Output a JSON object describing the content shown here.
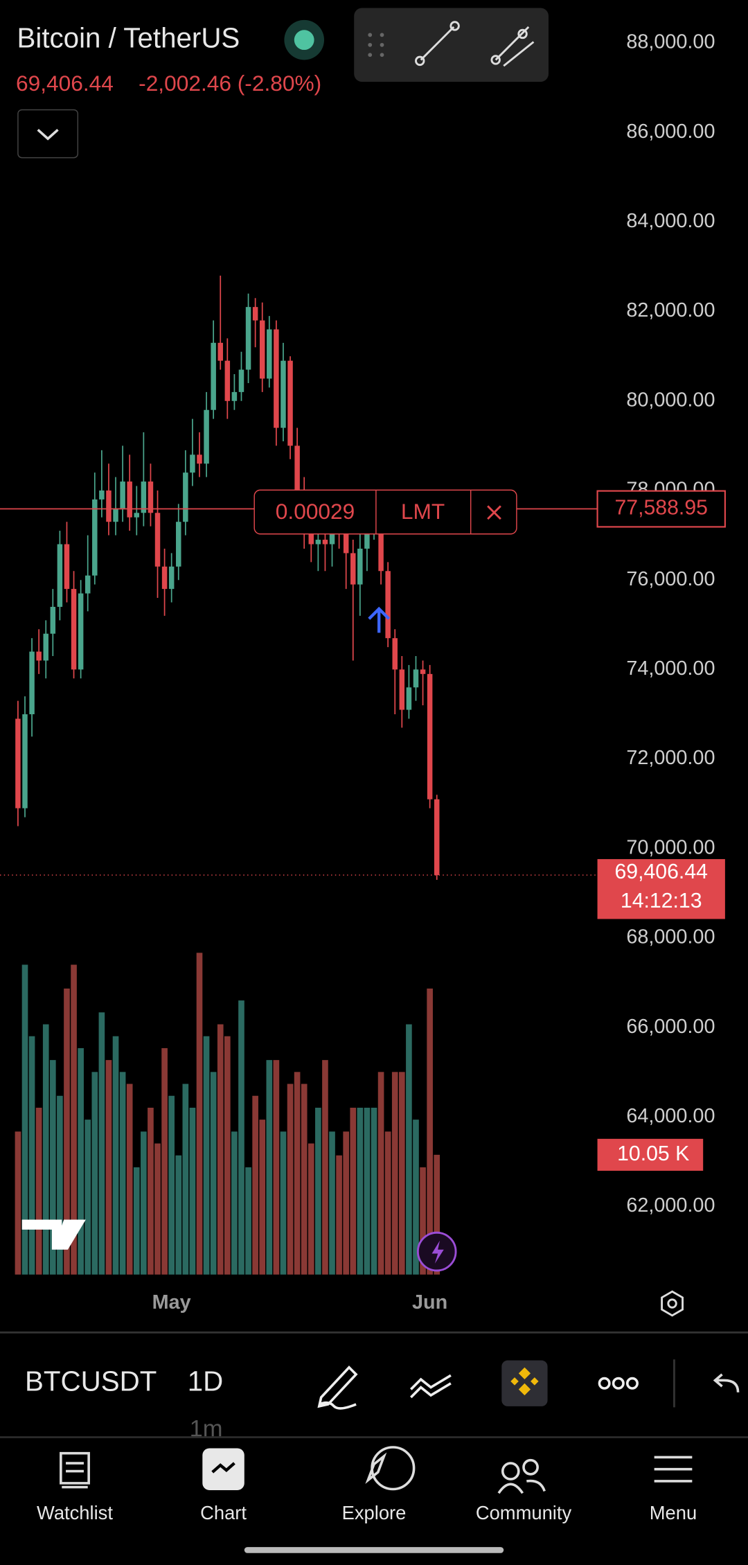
{
  "header": {
    "title": "Bitcoin / TetherUS",
    "last_price": "69,406.44",
    "change": "-2,002.46 (-2.80%)"
  },
  "order": {
    "quantity": "0.00029",
    "type": "LMT"
  },
  "toolbar": {
    "symbol": "BTCUSDT",
    "interval": "1D",
    "next_interval": "1m"
  },
  "tabs": [
    "Watchlist",
    "Chart",
    "Explore",
    "Community",
    "Menu"
  ],
  "chart_data": {
    "type": "candlestick",
    "x": [
      null,
      null,
      null,
      null,
      null,
      null,
      null,
      null,
      null,
      null,
      null,
      null,
      null,
      null,
      null,
      null,
      null,
      null,
      null,
      null,
      null,
      null,
      "May",
      null,
      null,
      null,
      null,
      null,
      null,
      null,
      null,
      null,
      null,
      null,
      null,
      null,
      null,
      null,
      null,
      null,
      null,
      null,
      null,
      null,
      null,
      null,
      null,
      null,
      null,
      null,
      null,
      null,
      null,
      null,
      null,
      null,
      null,
      null,
      null,
      "Jun",
      null
    ],
    "ohlc": [
      [
        72900,
        73300,
        70500,
        70900
      ],
      [
        70900,
        73400,
        70700,
        73000
      ],
      [
        73000,
        74700,
        72500,
        74400
      ],
      [
        74400,
        74900,
        73900,
        74200
      ],
      [
        74200,
        75100,
        73800,
        74800
      ],
      [
        74800,
        75800,
        74300,
        75400
      ],
      [
        75400,
        77100,
        75100,
        76800
      ],
      [
        76800,
        77300,
        75500,
        75800
      ],
      [
        75800,
        76200,
        73800,
        74000
      ],
      [
        74000,
        76000,
        73800,
        75700
      ],
      [
        75700,
        77000,
        75300,
        76100
      ],
      [
        76100,
        78400,
        75900,
        77800
      ],
      [
        77800,
        78900,
        77400,
        78000
      ],
      [
        78000,
        78600,
        77000,
        77300
      ],
      [
        77300,
        78300,
        77000,
        77600
      ],
      [
        77600,
        79000,
        77300,
        78200
      ],
      [
        78200,
        78800,
        77100,
        77400
      ],
      [
        77400,
        78100,
        77000,
        77500
      ],
      [
        77500,
        79300,
        77200,
        78200
      ],
      [
        78200,
        78600,
        77200,
        77500
      ],
      [
        77500,
        78000,
        75600,
        76300
      ],
      [
        76300,
        76700,
        75200,
        75800
      ],
      [
        75800,
        76600,
        75500,
        76300
      ],
      [
        76300,
        77700,
        76000,
        77300
      ],
      [
        77300,
        78900,
        77000,
        78400
      ],
      [
        78400,
        79600,
        78100,
        78800
      ],
      [
        78800,
        79300,
        78300,
        78600
      ],
      [
        78600,
        80200,
        78300,
        79800
      ],
      [
        79800,
        81800,
        79600,
        81300
      ],
      [
        81300,
        82800,
        80700,
        80900
      ],
      [
        80900,
        81400,
        79600,
        80000
      ],
      [
        80000,
        80600,
        79800,
        80200
      ],
      [
        80200,
        81100,
        80000,
        80700
      ],
      [
        80700,
        82400,
        80400,
        82100
      ],
      [
        82100,
        82300,
        81200,
        81800
      ],
      [
        81800,
        82200,
        80200,
        80500
      ],
      [
        80500,
        81900,
        80300,
        81600
      ],
      [
        81600,
        81800,
        79000,
        79400
      ],
      [
        79400,
        81300,
        79100,
        80900
      ],
      [
        80900,
        81000,
        78700,
        79000
      ],
      [
        79000,
        79400,
        77700,
        78000
      ],
      [
        78000,
        78300,
        76700,
        77200
      ],
      [
        77200,
        77600,
        76400,
        76800
      ],
      [
        76800,
        77300,
        76200,
        76900
      ],
      [
        76900,
        77200,
        76200,
        76800
      ],
      [
        76800,
        77700,
        76300,
        77400
      ],
      [
        77400,
        77600,
        76700,
        77100
      ],
      [
        77100,
        77400,
        75800,
        76600
      ],
      [
        76600,
        76900,
        74200,
        75900
      ],
      [
        75900,
        77100,
        75200,
        76700
      ],
      [
        76700,
        77500,
        76200,
        77300
      ],
      [
        77300,
        77800,
        76900,
        77500
      ],
      [
        77500,
        77900,
        75900,
        76200
      ],
      [
        76200,
        76400,
        74500,
        74700
      ],
      [
        74700,
        74900,
        73000,
        74000
      ],
      [
        74000,
        74300,
        72700,
        73100
      ],
      [
        73100,
        74100,
        72900,
        73600
      ],
      [
        73600,
        74300,
        73300,
        74000
      ],
      [
        74000,
        74200,
        73200,
        73900
      ],
      [
        73900,
        74100,
        70900,
        71100
      ],
      [
        71100,
        71200,
        69300,
        69406.44
      ]
    ],
    "volume": [
      12,
      26,
      20,
      14,
      21,
      18,
      15,
      24,
      26,
      19,
      13,
      17,
      22,
      18,
      20,
      17,
      16,
      9,
      12,
      14,
      11,
      19,
      15,
      10,
      16,
      14,
      27,
      20,
      17,
      21,
      20,
      12,
      23,
      9,
      15,
      13,
      18,
      18,
      12,
      16,
      17,
      16,
      11,
      14,
      18,
      12,
      10,
      12,
      14,
      14,
      14,
      14,
      17,
      12,
      17,
      17,
      21,
      13,
      9,
      24,
      10.05
    ],
    "up_color": "#4aa58c",
    "down_color": "#e0474c",
    "volume_up_color": "#2b6a61",
    "volume_down_color": "#8a3935",
    "ylim": [
      60480,
      88960
    ],
    "yticks": [
      {
        "value": 88000,
        "label": "88,000.00"
      },
      {
        "value": 86000,
        "label": "86,000.00"
      },
      {
        "value": 84000,
        "label": "84,000.00"
      },
      {
        "value": 82000,
        "label": "82,000.00"
      },
      {
        "value": 80000,
        "label": "80,000.00"
      },
      {
        "value": 78000,
        "label": "78,000.00"
      },
      {
        "value": 76000,
        "label": "76,000.00"
      },
      {
        "value": 74000,
        "label": "74,000.00"
      },
      {
        "value": 72000,
        "label": "72,000.00"
      },
      {
        "value": 70000,
        "label": "70,000.00"
      },
      {
        "value": 68000,
        "label": "68,000.00"
      },
      {
        "value": 66000,
        "label": "66,000.00"
      },
      {
        "value": 64000,
        "label": "64,000.00"
      },
      {
        "value": 62000,
        "label": "62,000.00"
      }
    ],
    "grid": false,
    "order_price": 77588.95,
    "order_price_label": "77,588.95",
    "last_price_label": "69,406.44",
    "countdown": "14:12:13",
    "volume_label": "10.05 K"
  }
}
